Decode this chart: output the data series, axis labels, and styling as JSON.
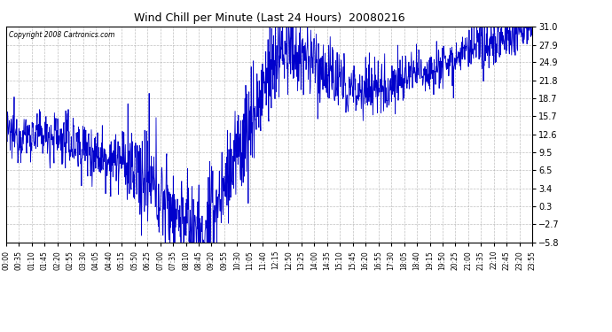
{
  "title": "Wind Chill per Minute (Last 24 Hours)  20080216",
  "copyright": "Copyright 2008 Cartronics.com",
  "line_color": "#0000cc",
  "background_color": "#ffffff",
  "plot_bg_color": "#ffffff",
  "grid_color": "#b0b0b0",
  "yticks": [
    31.0,
    27.9,
    24.9,
    21.8,
    18.7,
    15.7,
    12.6,
    9.5,
    6.5,
    3.4,
    0.3,
    -2.7,
    -5.8
  ],
  "ymin": -5.8,
  "ymax": 31.0,
  "xtick_labels": [
    "00:00",
    "00:35",
    "01:10",
    "01:45",
    "02:20",
    "02:55",
    "03:30",
    "04:05",
    "04:40",
    "05:15",
    "05:50",
    "06:25",
    "07:00",
    "07:35",
    "08:10",
    "08:45",
    "09:20",
    "09:55",
    "10:30",
    "11:05",
    "11:40",
    "12:15",
    "12:50",
    "13:25",
    "14:00",
    "14:35",
    "15:10",
    "15:45",
    "16:20",
    "16:55",
    "17:30",
    "18:05",
    "18:40",
    "19:15",
    "19:50",
    "20:25",
    "21:00",
    "21:35",
    "22:10",
    "22:45",
    "23:20",
    "23:55"
  ],
  "base_curve": [
    12.5,
    12.5,
    12.3,
    12.0,
    11.5,
    11.0,
    10.5,
    10.0,
    9.5,
    9.0,
    8.8,
    8.5,
    8.0,
    7.5,
    7.0,
    6.5,
    6.0,
    5.5,
    5.0,
    4.5,
    4.0,
    3.5,
    3.0,
    2.5,
    2.0,
    1.5,
    1.0,
    0.5,
    0.0,
    -0.5,
    -1.0,
    -1.5,
    -2.0,
    -2.8,
    -3.5,
    -4.2,
    -4.8,
    -5.0,
    -4.5,
    -3.5,
    -2.5,
    -1.5,
    0.0,
    1.5,
    3.5,
    5.5,
    7.5,
    9.5,
    11.5,
    13.5,
    15.5,
    17.5,
    19.5,
    21.5,
    23.5,
    25.0,
    26.5,
    27.5,
    27.0,
    26.5,
    26.0,
    25.5,
    25.0,
    25.5,
    26.0,
    26.5,
    27.0,
    26.5,
    25.5,
    24.5,
    23.5,
    22.5,
    22.0,
    21.5,
    21.0,
    20.5,
    20.0,
    20.5,
    21.0,
    21.5,
    22.0,
    22.5,
    23.0,
    23.5,
    24.0,
    24.5,
    25.0,
    25.5,
    26.0,
    26.5,
    27.0,
    27.5,
    28.0,
    28.5,
    29.0,
    29.5,
    30.0,
    30.3,
    30.5,
    30.7,
    30.8,
    30.9,
    31.0,
    31.0,
    31.0,
    31.0,
    31.0,
    31.0,
    31.0,
    31.0,
    31.0,
    31.0,
    31.0,
    31.0,
    31.0,
    31.0,
    31.0,
    31.0,
    31.0,
    31.0
  ],
  "noise_profile": [
    2.5,
    2.5,
    2.5,
    2.5,
    2.5,
    2.5,
    2.5,
    2.5,
    2.5,
    2.5,
    2.5,
    2.5,
    3.0,
    3.0,
    3.0,
    3.0,
    3.0,
    3.0,
    3.0,
    3.0,
    3.0,
    3.0,
    3.0,
    3.0,
    3.5,
    3.5,
    3.5,
    3.5,
    3.5,
    3.5,
    3.5,
    3.5,
    3.5,
    3.5,
    3.5,
    3.5,
    4.0,
    4.0,
    4.0,
    4.0,
    4.0,
    4.0,
    4.0,
    4.0,
    4.0,
    4.0,
    4.0,
    4.0,
    4.0,
    4.0,
    4.0,
    4.0,
    4.0,
    4.0,
    4.0,
    4.0,
    3.5,
    3.5,
    3.5,
    3.5,
    3.5,
    3.5,
    3.5,
    3.5,
    3.5,
    3.5,
    3.5,
    3.5,
    3.0,
    3.0,
    3.0,
    3.0,
    3.0,
    3.0,
    3.0,
    3.0,
    3.0,
    3.0,
    3.0,
    3.0,
    3.0,
    3.0,
    3.0,
    3.0,
    2.5,
    2.5,
    2.5,
    2.5,
    2.5,
    2.5,
    2.5,
    2.5,
    2.5,
    2.5,
    2.5,
    2.5,
    2.0,
    2.0,
    2.0,
    2.0,
    2.0,
    2.0,
    2.0,
    2.0,
    2.0,
    2.0,
    2.0,
    2.0,
    1.5,
    1.5,
    1.5,
    1.5,
    1.5,
    1.5,
    1.5,
    1.5,
    1.5,
    1.5,
    1.5,
    1.5
  ]
}
